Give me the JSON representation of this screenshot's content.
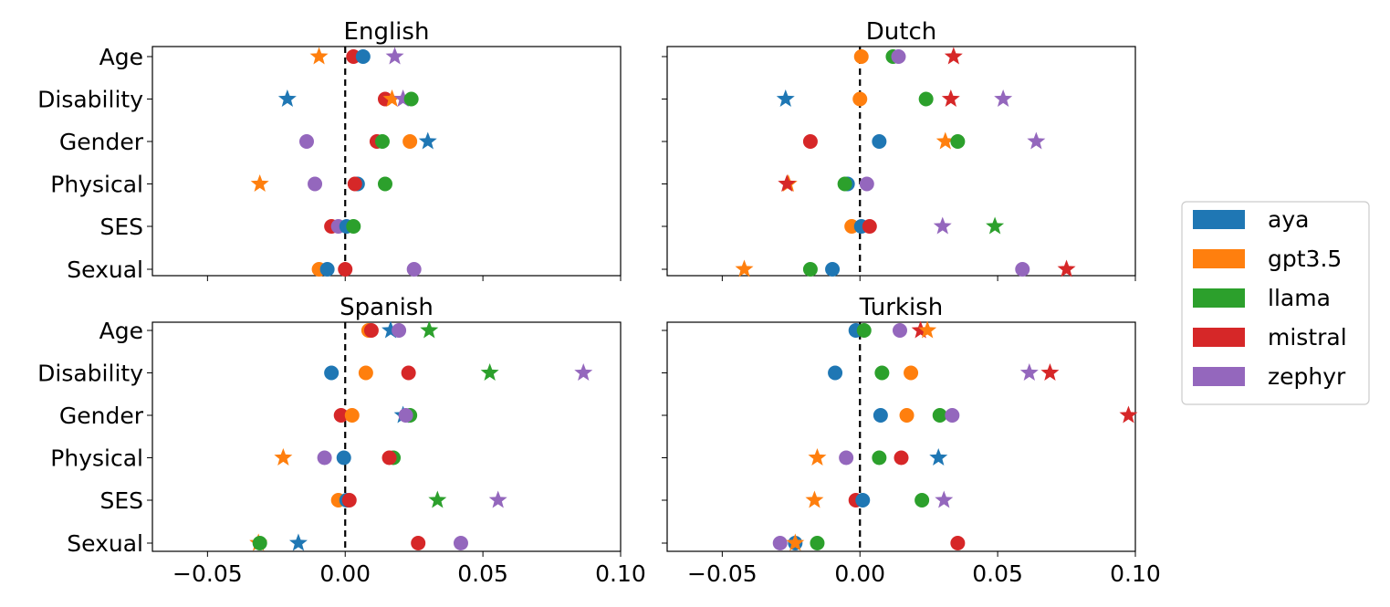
{
  "chart_data": {
    "type": "scatter",
    "shared_x": {
      "ticks": [
        -0.05,
        0.0,
        0.05,
        0.1
      ],
      "tick_labels": [
        "−0.05",
        "0.00",
        "0.05",
        "0.10"
      ],
      "xlim": [
        -0.07,
        0.1
      ]
    },
    "categories": [
      "Age",
      "Disability",
      "Gender",
      "Physical",
      "SES",
      "Sexual"
    ],
    "reference_line": {
      "x": 0,
      "style": "dashed"
    },
    "marker_legend": "circle = point estimate, star = alternative estimate",
    "legend": {
      "placement": "right",
      "entries": [
        {
          "name": "aya",
          "color": "#1f77b4"
        },
        {
          "name": "gpt3.5",
          "color": "#ff7f0e"
        },
        {
          "name": "llama",
          "color": "#2ca02c"
        },
        {
          "name": "mistral",
          "color": "#d62728"
        },
        {
          "name": "zephyr",
          "color": "#9467bd"
        }
      ]
    },
    "panels": [
      {
        "title": "English",
        "points": [
          {
            "series": "mistral",
            "category": "Age",
            "x": 0.003,
            "marker": "circle"
          },
          {
            "series": "aya",
            "category": "Age",
            "x": 0.0065,
            "marker": "circle"
          },
          {
            "series": "gpt3.5",
            "category": "Age",
            "x": -0.0095,
            "marker": "star"
          },
          {
            "series": "zephyr",
            "category": "Age",
            "x": 0.018,
            "marker": "star"
          },
          {
            "series": "aya",
            "category": "Disability",
            "x": -0.021,
            "marker": "star"
          },
          {
            "series": "mistral",
            "category": "Disability",
            "x": 0.0145,
            "marker": "circle"
          },
          {
            "series": "gpt3.5",
            "category": "Disability",
            "x": 0.017,
            "marker": "star"
          },
          {
            "series": "zephyr",
            "category": "Disability",
            "x": 0.021,
            "marker": "star"
          },
          {
            "series": "llama",
            "category": "Disability",
            "x": 0.024,
            "marker": "circle"
          },
          {
            "series": "zephyr",
            "category": "Gender",
            "x": -0.014,
            "marker": "circle"
          },
          {
            "series": "mistral",
            "category": "Gender",
            "x": 0.0115,
            "marker": "circle"
          },
          {
            "series": "llama",
            "category": "Gender",
            "x": 0.0135,
            "marker": "circle"
          },
          {
            "series": "gpt3.5",
            "category": "Gender",
            "x": 0.0235,
            "marker": "circle"
          },
          {
            "series": "aya",
            "category": "Gender",
            "x": 0.03,
            "marker": "star"
          },
          {
            "series": "gpt3.5",
            "category": "Physical",
            "x": -0.031,
            "marker": "star"
          },
          {
            "series": "zephyr",
            "category": "Physical",
            "x": -0.011,
            "marker": "circle"
          },
          {
            "series": "aya",
            "category": "Physical",
            "x": 0.0045,
            "marker": "circle"
          },
          {
            "series": "mistral",
            "category": "Physical",
            "x": 0.0035,
            "marker": "circle"
          },
          {
            "series": "llama",
            "category": "Physical",
            "x": 0.0145,
            "marker": "circle"
          },
          {
            "series": "mistral",
            "category": "SES",
            "x": -0.005,
            "marker": "circle"
          },
          {
            "series": "zephyr",
            "category": "SES",
            "x": -0.0025,
            "marker": "circle"
          },
          {
            "series": "aya",
            "category": "SES",
            "x": 0.0005,
            "marker": "circle"
          },
          {
            "series": "llama",
            "category": "SES",
            "x": 0.003,
            "marker": "circle"
          },
          {
            "series": "gpt3.5",
            "category": "Sexual",
            "x": -0.0095,
            "marker": "circle"
          },
          {
            "series": "aya",
            "category": "Sexual",
            "x": -0.0065,
            "marker": "circle"
          },
          {
            "series": "mistral",
            "category": "Sexual",
            "x": 0.0,
            "marker": "circle"
          },
          {
            "series": "zephyr",
            "category": "Sexual",
            "x": 0.025,
            "marker": "circle"
          }
        ]
      },
      {
        "title": "Dutch",
        "points": [
          {
            "series": "gpt3.5",
            "category": "Age",
            "x": 0.0005,
            "marker": "circle"
          },
          {
            "series": "llama",
            "category": "Age",
            "x": 0.012,
            "marker": "circle"
          },
          {
            "series": "zephyr",
            "category": "Age",
            "x": 0.014,
            "marker": "circle"
          },
          {
            "series": "mistral",
            "category": "Age",
            "x": 0.034,
            "marker": "star"
          },
          {
            "series": "aya",
            "category": "Disability",
            "x": -0.027,
            "marker": "star"
          },
          {
            "series": "gpt3.5",
            "category": "Disability",
            "x": 0.0,
            "marker": "circle"
          },
          {
            "series": "llama",
            "category": "Disability",
            "x": 0.024,
            "marker": "circle"
          },
          {
            "series": "mistral",
            "category": "Disability",
            "x": 0.033,
            "marker": "star"
          },
          {
            "series": "zephyr",
            "category": "Disability",
            "x": 0.052,
            "marker": "star"
          },
          {
            "series": "mistral",
            "category": "Gender",
            "x": -0.018,
            "marker": "circle"
          },
          {
            "series": "aya",
            "category": "Gender",
            "x": 0.007,
            "marker": "circle"
          },
          {
            "series": "gpt3.5",
            "category": "Gender",
            "x": 0.031,
            "marker": "star"
          },
          {
            "series": "llama",
            "category": "Gender",
            "x": 0.0355,
            "marker": "circle"
          },
          {
            "series": "zephyr",
            "category": "Gender",
            "x": 0.064,
            "marker": "star"
          },
          {
            "series": "gpt3.5",
            "category": "Physical",
            "x": -0.026,
            "marker": "star"
          },
          {
            "series": "mistral",
            "category": "Physical",
            "x": -0.0265,
            "marker": "star"
          },
          {
            "series": "aya",
            "category": "Physical",
            "x": -0.0045,
            "marker": "circle"
          },
          {
            "series": "llama",
            "category": "Physical",
            "x": -0.0055,
            "marker": "circle"
          },
          {
            "series": "zephyr",
            "category": "Physical",
            "x": 0.0025,
            "marker": "circle"
          },
          {
            "series": "gpt3.5",
            "category": "SES",
            "x": -0.003,
            "marker": "circle"
          },
          {
            "series": "aya",
            "category": "SES",
            "x": 0.0005,
            "marker": "circle"
          },
          {
            "series": "mistral",
            "category": "SES",
            "x": 0.0035,
            "marker": "circle"
          },
          {
            "series": "zephyr",
            "category": "SES",
            "x": 0.03,
            "marker": "star"
          },
          {
            "series": "llama",
            "category": "SES",
            "x": 0.049,
            "marker": "star"
          },
          {
            "series": "gpt3.5",
            "category": "Sexual",
            "x": -0.042,
            "marker": "star"
          },
          {
            "series": "llama",
            "category": "Sexual",
            "x": -0.018,
            "marker": "circle"
          },
          {
            "series": "aya",
            "category": "Sexual",
            "x": -0.01,
            "marker": "circle"
          },
          {
            "series": "zephyr",
            "category": "Sexual",
            "x": 0.059,
            "marker": "circle"
          },
          {
            "series": "mistral",
            "category": "Sexual",
            "x": 0.075,
            "marker": "star"
          }
        ]
      },
      {
        "title": "Spanish",
        "points": [
          {
            "series": "gpt3.5",
            "category": "Age",
            "x": 0.0085,
            "marker": "circle"
          },
          {
            "series": "mistral",
            "category": "Age",
            "x": 0.0095,
            "marker": "circle"
          },
          {
            "series": "aya",
            "category": "Age",
            "x": 0.0165,
            "marker": "star"
          },
          {
            "series": "zephyr",
            "category": "Age",
            "x": 0.0195,
            "marker": "circle"
          },
          {
            "series": "llama",
            "category": "Age",
            "x": 0.0305,
            "marker": "star"
          },
          {
            "series": "aya",
            "category": "Disability",
            "x": -0.005,
            "marker": "circle"
          },
          {
            "series": "gpt3.5",
            "category": "Disability",
            "x": 0.0075,
            "marker": "circle"
          },
          {
            "series": "mistral",
            "category": "Disability",
            "x": 0.023,
            "marker": "circle"
          },
          {
            "series": "llama",
            "category": "Disability",
            "x": 0.0525,
            "marker": "star"
          },
          {
            "series": "zephyr",
            "category": "Disability",
            "x": 0.0865,
            "marker": "star"
          },
          {
            "series": "mistral",
            "category": "Gender",
            "x": -0.0015,
            "marker": "circle"
          },
          {
            "series": "gpt3.5",
            "category": "Gender",
            "x": 0.0025,
            "marker": "circle"
          },
          {
            "series": "aya",
            "category": "Gender",
            "x": 0.021,
            "marker": "star"
          },
          {
            "series": "llama",
            "category": "Gender",
            "x": 0.0235,
            "marker": "circle"
          },
          {
            "series": "zephyr",
            "category": "Gender",
            "x": 0.022,
            "marker": "circle"
          },
          {
            "series": "gpt3.5",
            "category": "Physical",
            "x": -0.0225,
            "marker": "star"
          },
          {
            "series": "zephyr",
            "category": "Physical",
            "x": -0.0075,
            "marker": "circle"
          },
          {
            "series": "aya",
            "category": "Physical",
            "x": -0.0005,
            "marker": "circle"
          },
          {
            "series": "llama",
            "category": "Physical",
            "x": 0.0175,
            "marker": "circle"
          },
          {
            "series": "mistral",
            "category": "Physical",
            "x": 0.016,
            "marker": "circle"
          },
          {
            "series": "gpt3.5",
            "category": "SES",
            "x": -0.0025,
            "marker": "circle"
          },
          {
            "series": "aya",
            "category": "SES",
            "x": 0.0005,
            "marker": "circle"
          },
          {
            "series": "mistral",
            "category": "SES",
            "x": 0.0015,
            "marker": "circle"
          },
          {
            "series": "llama",
            "category": "SES",
            "x": 0.0335,
            "marker": "star"
          },
          {
            "series": "zephyr",
            "category": "SES",
            "x": 0.0555,
            "marker": "star"
          },
          {
            "series": "gpt3.5",
            "category": "Sexual",
            "x": -0.0315,
            "marker": "star"
          },
          {
            "series": "llama",
            "category": "Sexual",
            "x": -0.031,
            "marker": "circle"
          },
          {
            "series": "aya",
            "category": "Sexual",
            "x": -0.017,
            "marker": "star"
          },
          {
            "series": "mistral",
            "category": "Sexual",
            "x": 0.0265,
            "marker": "circle"
          },
          {
            "series": "zephyr",
            "category": "Sexual",
            "x": 0.042,
            "marker": "circle"
          }
        ]
      },
      {
        "title": "Turkish",
        "points": [
          {
            "series": "aya",
            "category": "Age",
            "x": -0.0015,
            "marker": "circle"
          },
          {
            "series": "llama",
            "category": "Age",
            "x": 0.0015,
            "marker": "circle"
          },
          {
            "series": "zephyr",
            "category": "Age",
            "x": 0.0145,
            "marker": "circle"
          },
          {
            "series": "mistral",
            "category": "Age",
            "x": 0.022,
            "marker": "star"
          },
          {
            "series": "gpt3.5",
            "category": "Age",
            "x": 0.0245,
            "marker": "star"
          },
          {
            "series": "aya",
            "category": "Disability",
            "x": -0.009,
            "marker": "circle"
          },
          {
            "series": "llama",
            "category": "Disability",
            "x": 0.008,
            "marker": "circle"
          },
          {
            "series": "gpt3.5",
            "category": "Disability",
            "x": 0.0185,
            "marker": "circle"
          },
          {
            "series": "zephyr",
            "category": "Disability",
            "x": 0.0615,
            "marker": "star"
          },
          {
            "series": "mistral",
            "category": "Disability",
            "x": 0.069,
            "marker": "star"
          },
          {
            "series": "aya",
            "category": "Gender",
            "x": 0.0075,
            "marker": "circle"
          },
          {
            "series": "gpt3.5",
            "category": "Gender",
            "x": 0.017,
            "marker": "circle"
          },
          {
            "series": "llama",
            "category": "Gender",
            "x": 0.029,
            "marker": "circle"
          },
          {
            "series": "zephyr",
            "category": "Gender",
            "x": 0.0335,
            "marker": "circle"
          },
          {
            "series": "mistral",
            "category": "Gender",
            "x": 0.0975,
            "marker": "star"
          },
          {
            "series": "gpt3.5",
            "category": "Physical",
            "x": -0.0155,
            "marker": "star"
          },
          {
            "series": "zephyr",
            "category": "Physical",
            "x": -0.005,
            "marker": "circle"
          },
          {
            "series": "llama",
            "category": "Physical",
            "x": 0.007,
            "marker": "circle"
          },
          {
            "series": "mistral",
            "category": "Physical",
            "x": 0.015,
            "marker": "circle"
          },
          {
            "series": "aya",
            "category": "Physical",
            "x": 0.0285,
            "marker": "star"
          },
          {
            "series": "gpt3.5",
            "category": "SES",
            "x": -0.0165,
            "marker": "star"
          },
          {
            "series": "mistral",
            "category": "SES",
            "x": -0.0015,
            "marker": "circle"
          },
          {
            "series": "aya",
            "category": "SES",
            "x": 0.001,
            "marker": "circle"
          },
          {
            "series": "llama",
            "category": "SES",
            "x": 0.0225,
            "marker": "circle"
          },
          {
            "series": "zephyr",
            "category": "SES",
            "x": 0.0305,
            "marker": "star"
          },
          {
            "series": "zephyr",
            "category": "Sexual",
            "x": -0.029,
            "marker": "circle"
          },
          {
            "series": "aya",
            "category": "Sexual",
            "x": -0.0235,
            "marker": "circle"
          },
          {
            "series": "gpt3.5",
            "category": "Sexual",
            "x": -0.0235,
            "marker": "star"
          },
          {
            "series": "llama",
            "category": "Sexual",
            "x": -0.0155,
            "marker": "circle"
          },
          {
            "series": "mistral",
            "category": "Sexual",
            "x": 0.0355,
            "marker": "circle"
          }
        ]
      }
    ]
  }
}
